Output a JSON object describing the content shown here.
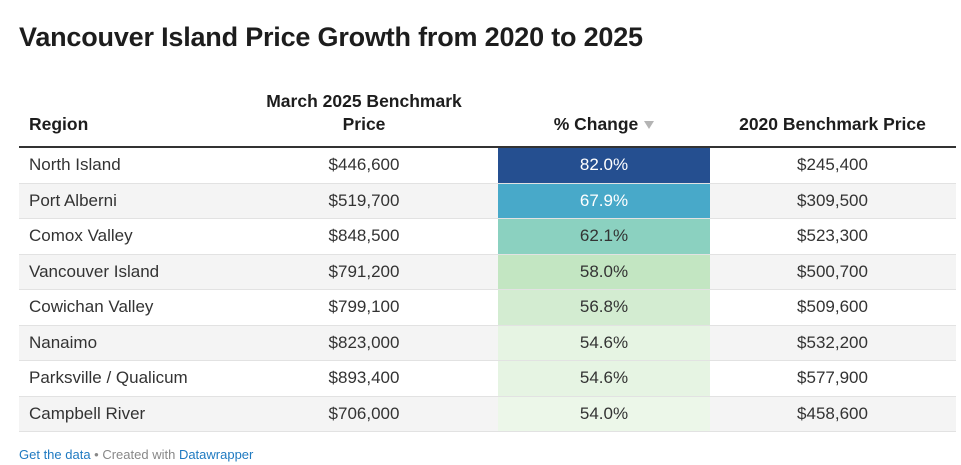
{
  "title": "Vancouver Island Price Growth from 2020 to 2025",
  "columns": {
    "region": "Region",
    "march_line1": "March 2025 Benchmark",
    "march_line2": "Price",
    "pct_change": "% Change",
    "bench_2020": "2020 Benchmark Price"
  },
  "sort_icon": "sort-descending-icon",
  "rows": [
    {
      "region": "North Island",
      "march": "$446,600",
      "pct": "82.0%",
      "pct_value": 82.0,
      "bench": "$245,400",
      "color": "#254f90",
      "text_color": "#ffffff"
    },
    {
      "region": "Port Alberni",
      "march": "$519,700",
      "pct": "67.9%",
      "pct_value": 67.9,
      "bench": "$309,500",
      "color": "#48a9c9",
      "text_color": "#ffffff"
    },
    {
      "region": "Comox Valley",
      "march": "$848,500",
      "pct": "62.1%",
      "pct_value": 62.1,
      "bench": "$523,300",
      "color": "#8bd1c0",
      "text_color": "#333333"
    },
    {
      "region": "Vancouver Island",
      "march": "$791,200",
      "pct": "58.0%",
      "pct_value": 58.0,
      "bench": "$500,700",
      "color": "#c3e6c2",
      "text_color": "#333333"
    },
    {
      "region": "Cowichan Valley",
      "march": "$799,100",
      "pct": "56.8%",
      "pct_value": 56.8,
      "bench": "$509,600",
      "color": "#d3ecd1",
      "text_color": "#333333"
    },
    {
      "region": "Nanaimo",
      "march": "$823,000",
      "pct": "54.6%",
      "pct_value": 54.6,
      "bench": "$532,200",
      "color": "#e6f4e3",
      "text_color": "#333333"
    },
    {
      "region": "Parksville / Qualicum",
      "march": "$893,400",
      "pct": "54.6%",
      "pct_value": 54.6,
      "bench": "$577,900",
      "color": "#e6f4e3",
      "text_color": "#333333"
    },
    {
      "region": "Campbell River",
      "march": "$706,000",
      "pct": "54.0%",
      "pct_value": 54.0,
      "bench": "$458,600",
      "color": "#ecf7e9",
      "text_color": "#333333"
    }
  ],
  "footer": {
    "get_data": "Get the data",
    "separator": " • Created with ",
    "datawrapper": "Datawrapper"
  },
  "chart_data": {
    "type": "table",
    "title": "Vancouver Island Price Growth from 2020 to 2025",
    "columns": [
      "Region",
      "March 2025 Benchmark Price",
      "% Change",
      "2020 Benchmark Price"
    ],
    "rows": [
      [
        "North Island",
        446600,
        82.0,
        245400
      ],
      [
        "Port Alberni",
        519700,
        67.9,
        309500
      ],
      [
        "Comox Valley",
        848500,
        62.1,
        523300
      ],
      [
        "Vancouver Island",
        791200,
        58.0,
        500700
      ],
      [
        "Cowichan Valley",
        799100,
        56.8,
        509600
      ],
      [
        "Nanaimo",
        823000,
        54.6,
        532200
      ],
      [
        "Parksville / Qualicum",
        893400,
        54.6,
        577900
      ],
      [
        "Campbell River",
        706000,
        54.0,
        458600
      ]
    ],
    "sorted_by": "% Change",
    "sort_order": "descending"
  }
}
